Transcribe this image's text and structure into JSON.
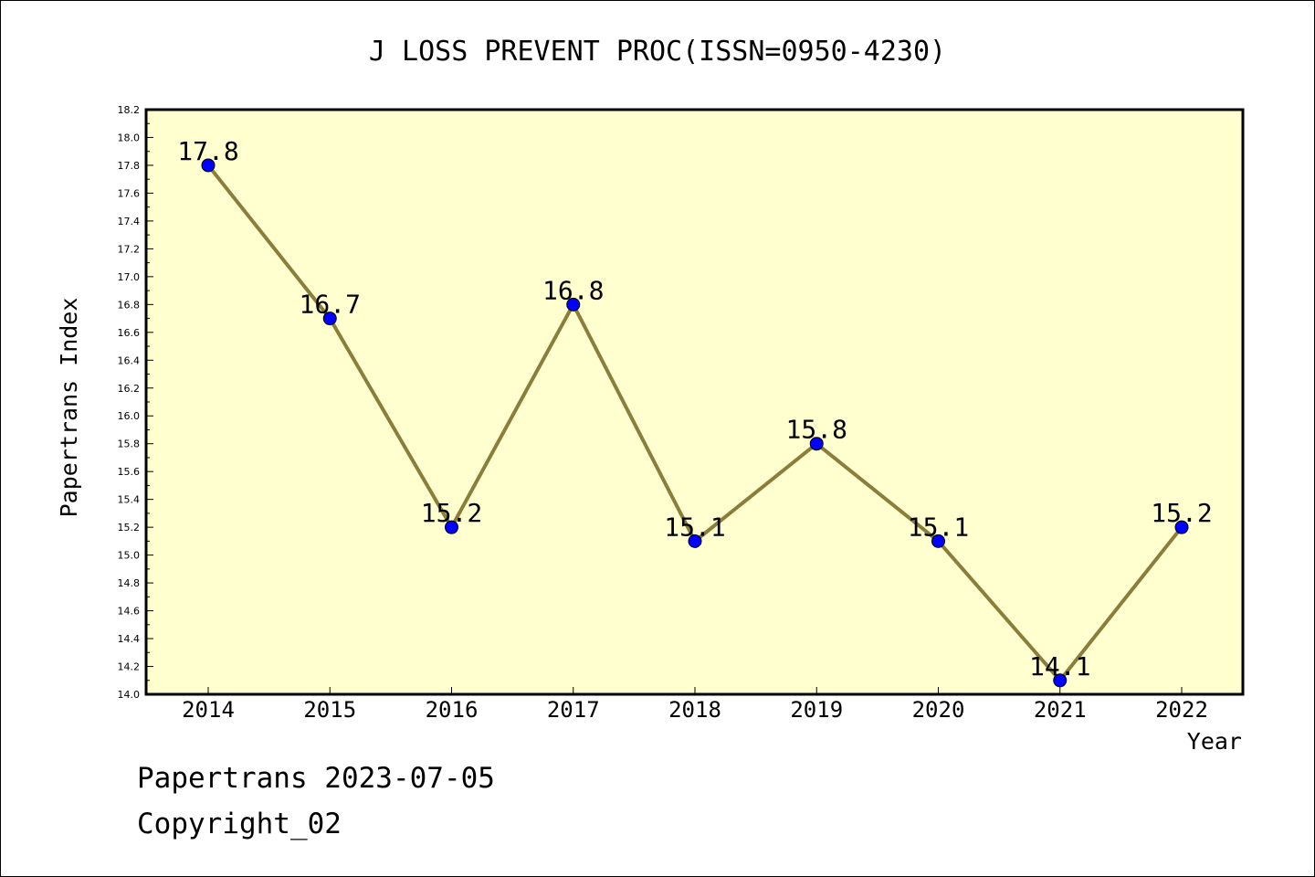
{
  "chart_data": {
    "type": "line",
    "title": "J LOSS PREVENT PROC(ISSN=0950-4230)",
    "xlabel": "Year",
    "ylabel": "Papertrans Index",
    "x": [
      "2014",
      "2015",
      "2016",
      "2017",
      "2018",
      "2019",
      "2020",
      "2021",
      "2022"
    ],
    "values": [
      17.8,
      16.7,
      15.2,
      16.8,
      15.1,
      15.8,
      15.1,
      14.1,
      15.2
    ],
    "data_labels": [
      "17.8",
      "16.7",
      "15.2",
      "16.8",
      "15.1",
      "15.8",
      "15.1",
      "14.1",
      "15.2"
    ],
    "ylim": [
      14.0,
      18.2
    ],
    "ytick_step": 0.2,
    "grid": false,
    "legend": "none",
    "colors": {
      "plot_background": "#ffffd0",
      "line": "#8b7d3a",
      "marker": "#0000ff"
    }
  },
  "footer": {
    "date_line": "Papertrans 2023-07-05",
    "copyright": "Copyright_02"
  }
}
